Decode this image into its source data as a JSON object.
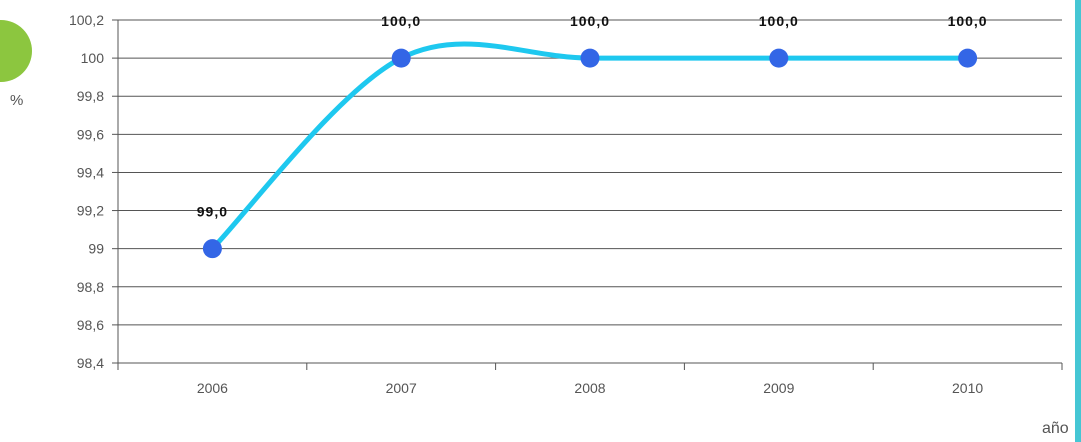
{
  "chart_data": {
    "type": "line",
    "categories": [
      "2006",
      "2007",
      "2008",
      "2009",
      "2010"
    ],
    "series": [
      {
        "values": [
          99.0,
          100.0,
          100.0,
          100.0,
          100.0
        ]
      }
    ],
    "data_labels": [
      "99,0",
      "100,0",
      "100,0",
      "100,0",
      "100,0"
    ],
    "yticks": [
      "98,4",
      "98,6",
      "98,8",
      "99",
      "99,2",
      "99,4",
      "99,6",
      "99,8",
      "100",
      "100,2"
    ],
    "ylim": [
      98.4,
      100.2
    ],
    "ylabel": "%",
    "xlabel": "año",
    "grid": true,
    "line_color": "#1ec8ef",
    "marker_color": "#3366e6",
    "grid_color": "#555555"
  }
}
